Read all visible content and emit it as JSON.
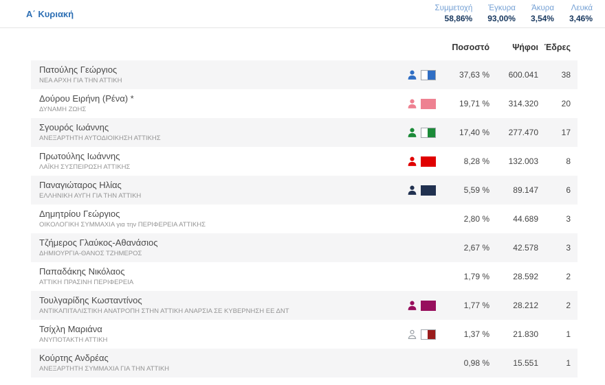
{
  "header": {
    "title": "Α΄ Κυριακή",
    "stats": [
      {
        "label": "Συμμετοχή",
        "value": "58,86%"
      },
      {
        "label": "Έγκυρα",
        "value": "93,00%"
      },
      {
        "label": "Άκυρα",
        "value": "3,54%"
      },
      {
        "label": "Λευκά",
        "value": "3,46%"
      }
    ]
  },
  "table": {
    "columns": [
      "Ποσοστό",
      "Ψήφοι",
      "Έδρες"
    ],
    "rows": [
      {
        "candidate": "Πατούλης Γεώργιος",
        "party": "ΝΕΑ ΑΡΧΗ ΓΙΑ ΤΗΝ ΑΤΤΙΚΗ",
        "icons": {
          "person": "filled",
          "person_color": "#2f6ec4",
          "flag": "half",
          "flag_color": "#2f6ec4"
        },
        "percent": "37,63 %",
        "votes": "600.041",
        "seats": "38"
      },
      {
        "candidate": "Δούρου Ειρήνη (Ρένα) *",
        "party": "ΔΥΝΑΜΗ ΖΩΗΣ",
        "icons": {
          "person": "filled",
          "person_color": "#ee8191",
          "flag": "solid",
          "flag_color": "#ee8191"
        },
        "percent": "19,71 %",
        "votes": "314.320",
        "seats": "20"
      },
      {
        "candidate": "Σγουρός Ιωάννης",
        "party": "ΑΝΕΞΑΡΤΗΤΗ ΑΥΤΟΔΙΟΙΚΗΣΗ ΑΤΤΙΚΗΣ",
        "icons": {
          "person": "filled",
          "person_color": "#1b8a38",
          "flag": "half",
          "flag_color": "#1b8a38"
        },
        "percent": "17,40 %",
        "votes": "277.470",
        "seats": "17"
      },
      {
        "candidate": "Πρωτούλης Ιωάννης",
        "party": "ΛΑΪΚΗ ΣΥΣΠΕΙΡΩΣΗ ΑΤΤΙΚΗΣ",
        "icons": {
          "person": "filled",
          "person_color": "#e00000",
          "flag": "solid",
          "flag_color": "#e00000"
        },
        "percent": "8,28 %",
        "votes": "132.003",
        "seats": "8"
      },
      {
        "candidate": "Παναγιώταρος Ηλίας",
        "party": "ΕΛΛΗΝΙΚΗ ΑΥΓΗ ΓΙΑ ΤΗΝ ΑΤΤΙΚΗ",
        "icons": {
          "person": "filled",
          "person_color": "#213150",
          "flag": "solid",
          "flag_color": "#213150"
        },
        "percent": "5,59 %",
        "votes": "89.147",
        "seats": "6"
      },
      {
        "candidate": "Δημητρίου Γεώργιος",
        "party": "ΟΙΚΟΛΟΓΙΚΗ ΣΥΜΜΑΧΙΑ για την ΠΕΡΙΦΕΡΕΙΑ ΑΤΤΙΚΗΣ",
        "icons": null,
        "percent": "2,80 %",
        "votes": "44.689",
        "seats": "3"
      },
      {
        "candidate": "Τζήμερος Γλαύκος-Αθανάσιος",
        "party": "ΔΗΜΙΟΥΡΓΙΑ-ΘΑΝΟΣ ΤΖΗΜΕΡΟΣ",
        "icons": null,
        "percent": "2,67 %",
        "votes": "42.578",
        "seats": "3"
      },
      {
        "candidate": "Παπαδάκης Νικόλαος",
        "party": "ΑΤΤΙΚΗ ΠΡΑΣΙΝΗ ΠΕΡΙΦΕΡΕΙΑ",
        "icons": null,
        "percent": "1,79 %",
        "votes": "28.592",
        "seats": "2"
      },
      {
        "candidate": "Τουλγαρίδης Κωσταντίνος",
        "party": "ΑΝΤΙΚΑΠΙΤΑΛΙΣΤΙΚΗ ΑΝΑΤΡΟΠΗ ΣΤΗΝ ΑΤΤΙΚΗ ΑΝΑΡΣΙΑ ΣΕ ΚΥΒΕΡΝΗΣΗ ΕΕ ΔΝΤ",
        "icons": {
          "person": "filled",
          "person_color": "#970f5d",
          "flag": "solid",
          "flag_color": "#970f5d"
        },
        "percent": "1,77 %",
        "votes": "28.212",
        "seats": "2"
      },
      {
        "candidate": "Τσίχλη Μαριάνα",
        "party": "ΑΝΥΠΟΤΑΚΤΗ ΑΤΤΙΚΗ",
        "icons": {
          "person": "outline",
          "person_color": "#9aa0a6",
          "flag": "half",
          "flag_color": "#9a1c1c"
        },
        "percent": "1,37 %",
        "votes": "21.830",
        "seats": "1"
      },
      {
        "candidate": "Κούρτης Ανδρέας",
        "party": "ΑΝΕΞΑΡΤΗΤΗ ΣΥΜΜΑΧΙΑ ΓΙΑ ΤΗΝ ΑΤΤΙΚΗ",
        "icons": null,
        "percent": "0,98 %",
        "votes": "15.551",
        "seats": "1"
      }
    ]
  }
}
